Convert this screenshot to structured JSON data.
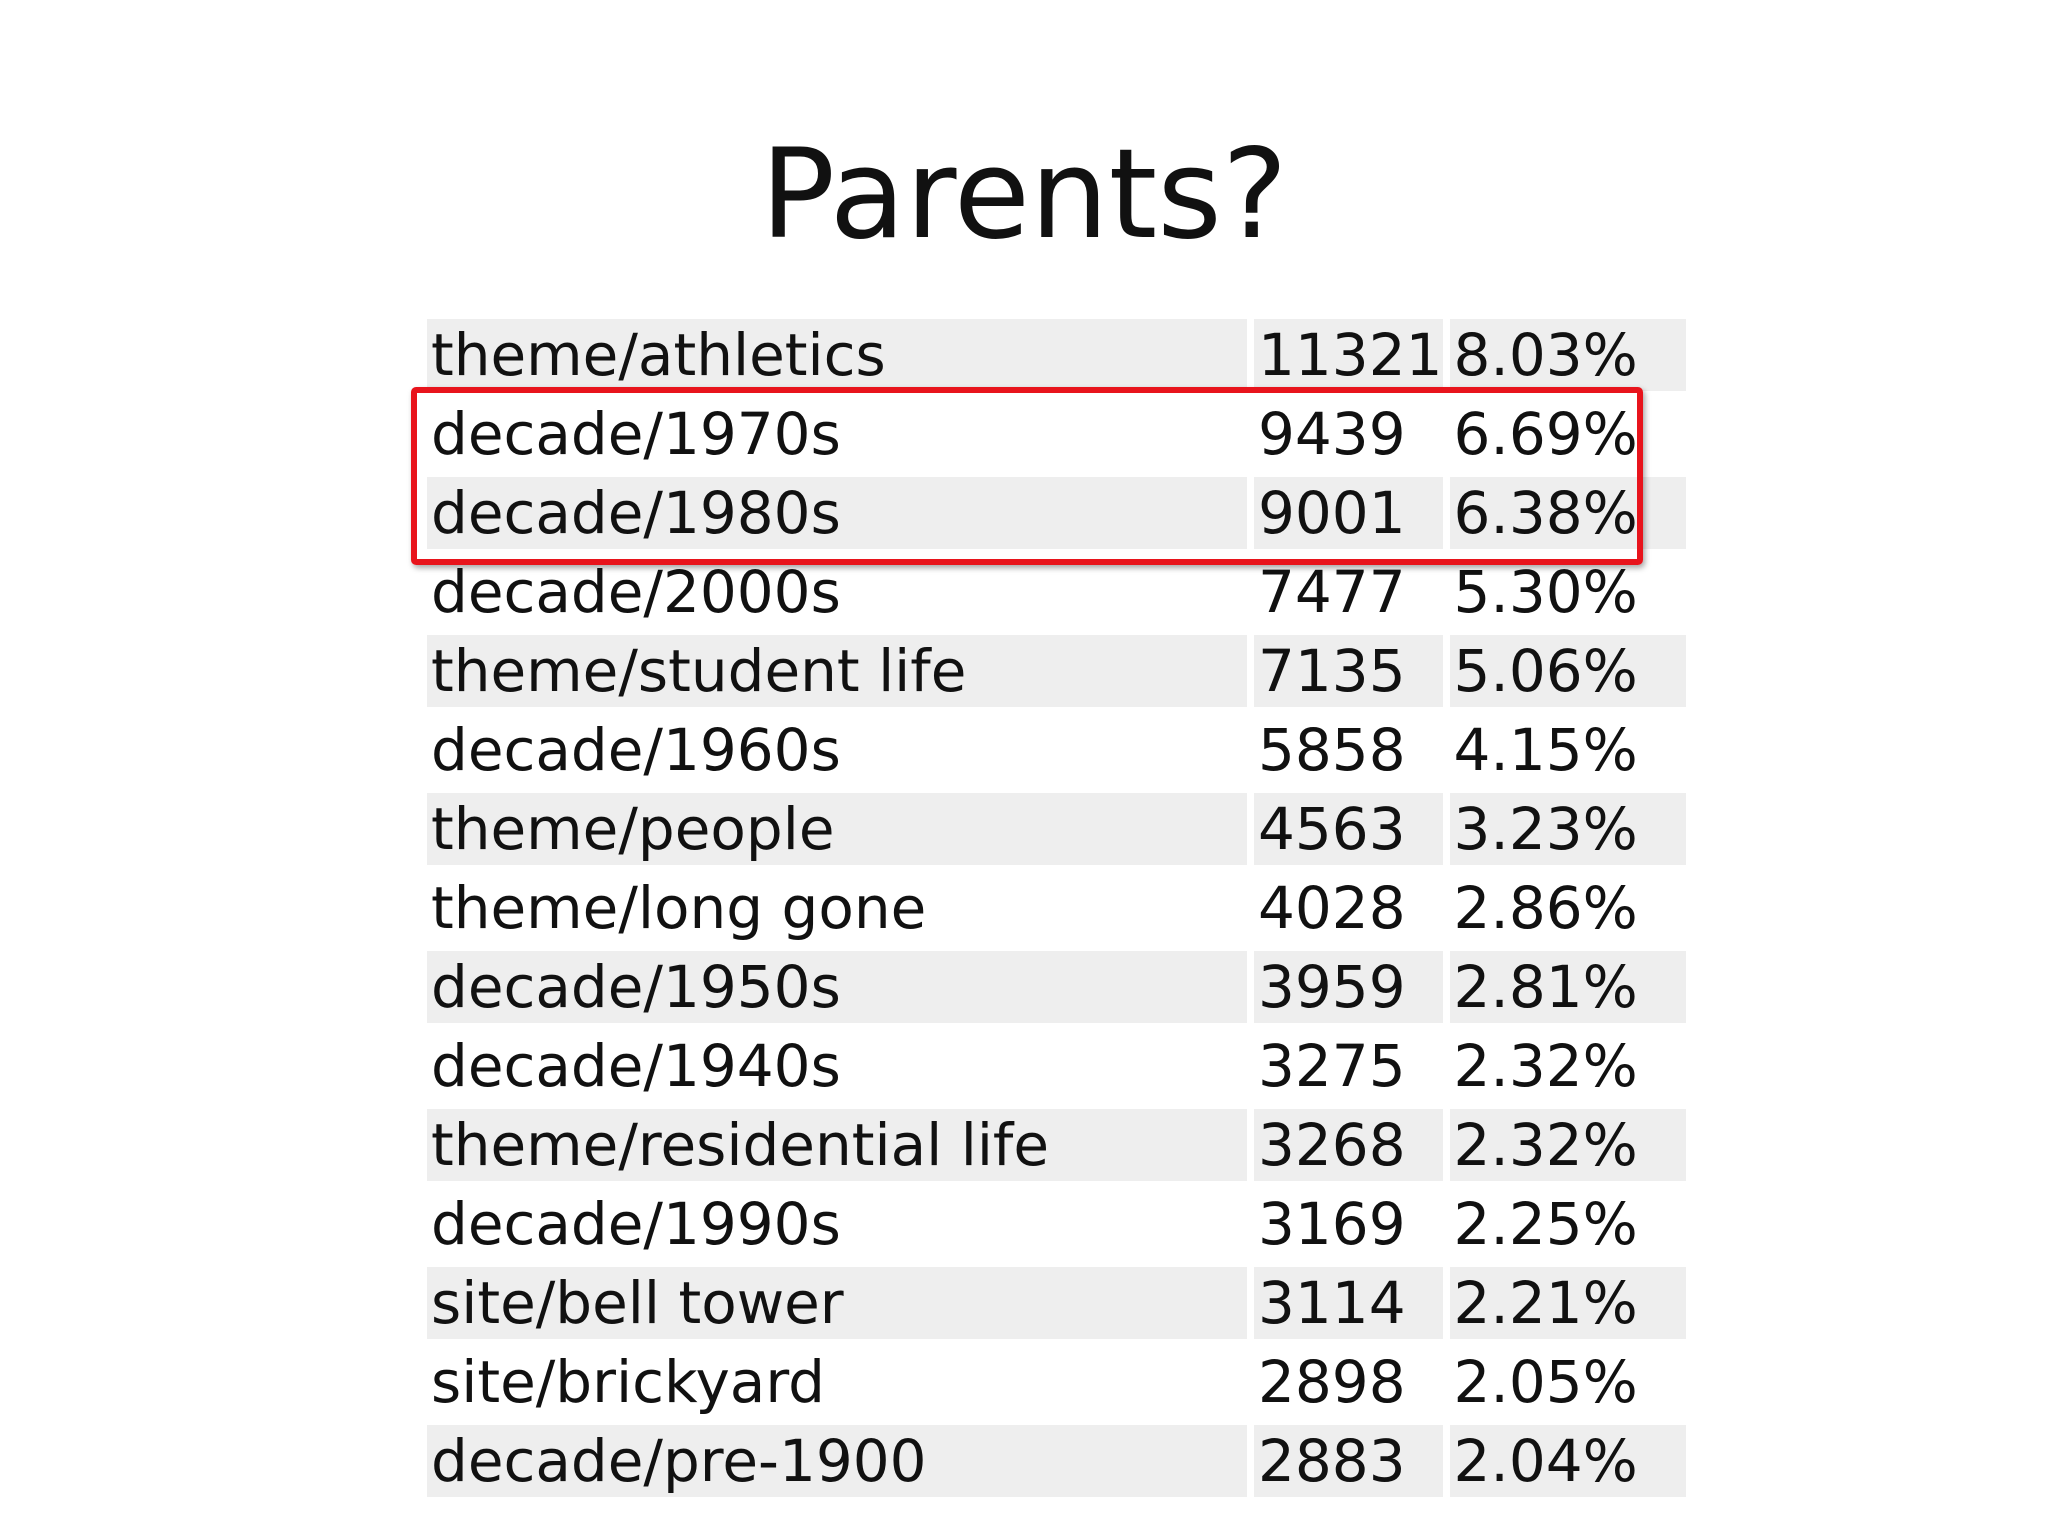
{
  "slide": {
    "title": "Parents?"
  },
  "table": {
    "rows": [
      {
        "tag": "theme/athletics",
        "count": "11321",
        "percent": "8.03%",
        "highlighted": false
      },
      {
        "tag": "decade/1970s",
        "count": "9439",
        "percent": "6.69%",
        "highlighted": true
      },
      {
        "tag": "decade/1980s",
        "count": "9001",
        "percent": "6.38%",
        "highlighted": true
      },
      {
        "tag": "decade/2000s",
        "count": "7477",
        "percent": "5.30%",
        "highlighted": false
      },
      {
        "tag": "theme/student life",
        "count": "7135",
        "percent": "5.06%",
        "highlighted": false
      },
      {
        "tag": "decade/1960s",
        "count": "5858",
        "percent": "4.15%",
        "highlighted": false
      },
      {
        "tag": "theme/people",
        "count": "4563",
        "percent": "3.23%",
        "highlighted": false
      },
      {
        "tag": "theme/long gone",
        "count": "4028",
        "percent": "2.86%",
        "highlighted": false
      },
      {
        "tag": "decade/1950s",
        "count": "3959",
        "percent": "2.81%",
        "highlighted": false
      },
      {
        "tag": "decade/1940s",
        "count": "3275",
        "percent": "2.32%",
        "highlighted": false
      },
      {
        "tag": "theme/residential life",
        "count": "3268",
        "percent": "2.32%",
        "highlighted": false
      },
      {
        "tag": "decade/1990s",
        "count": "3169",
        "percent": "2.25%",
        "highlighted": false
      },
      {
        "tag": "site/bell tower",
        "count": "3114",
        "percent": "2.21%",
        "highlighted": false
      },
      {
        "tag": "site/brickyard",
        "count": "2898",
        "percent": "2.05%",
        "highlighted": false
      },
      {
        "tag": "decade/pre-1900",
        "count": "2883",
        "percent": "2.04%",
        "highlighted": false
      }
    ]
  },
  "colors": {
    "highlight_border": "#e8141c",
    "row_shade": "#eeeeee",
    "text": "#111111"
  }
}
